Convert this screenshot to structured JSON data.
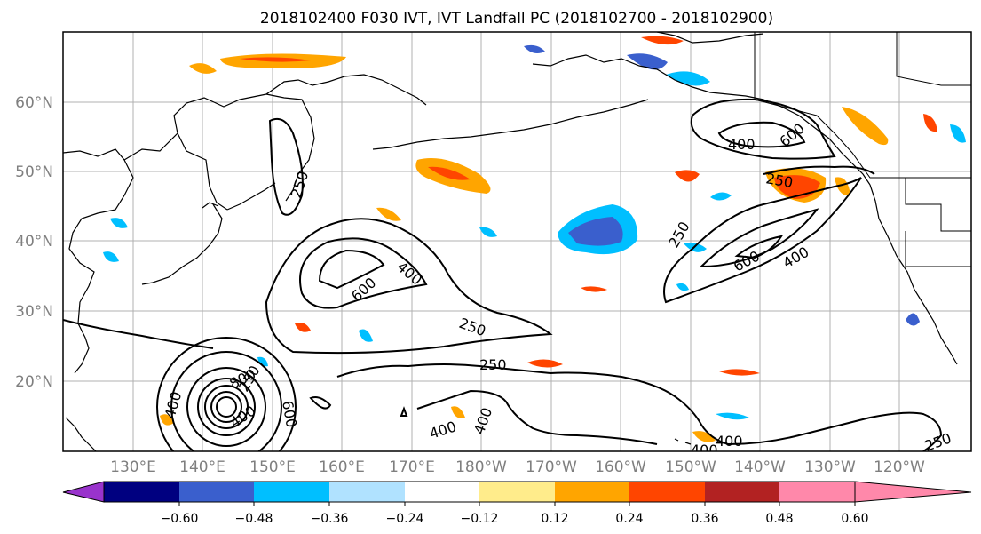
{
  "title": "2018102400 F030 IVT, IVT Landfall PC (2018102700 - 2018102900)",
  "map": {
    "lat_ticks": [
      "60°N",
      "50°N",
      "40°N",
      "30°N",
      "20°N"
    ],
    "lon_ticks": [
      "130°E",
      "140°E",
      "150°E",
      "160°E",
      "170°E",
      "180°W",
      "170°W",
      "160°W",
      "150°W",
      "140°W",
      "130°W",
      "120°W"
    ],
    "ivt_contour_levels": [
      250,
      400,
      600,
      800
    ],
    "contour_labels": [
      "250",
      "400",
      "600",
      "400",
      "600",
      "250",
      "250",
      "250",
      "800",
      "400",
      "600",
      "400",
      "400",
      "250",
      "400",
      "600",
      "400",
      "250",
      "400",
      "400",
      "250"
    ]
  },
  "colorbar": {
    "ticks": [
      "−0.60",
      "−0.48",
      "−0.36",
      "−0.24",
      "−0.12",
      "0.12",
      "0.24",
      "0.36",
      "0.48",
      "0.60"
    ],
    "colors": [
      "#9933cc",
      "#000080",
      "#3a5fcd",
      "#00bfff",
      "#b0e2ff",
      "#ffffff",
      "#ffec8b",
      "#ffa500",
      "#ff4500",
      "#b22222",
      "#ff88aa"
    ]
  }
}
